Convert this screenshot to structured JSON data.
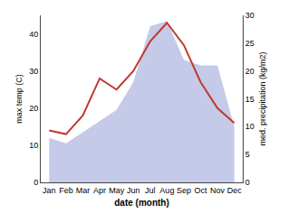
{
  "chart_data": {
    "type": "line",
    "categories": [
      "Jan",
      "Feb",
      "Mar",
      "Apr",
      "May",
      "Jun",
      "Jul",
      "Aug",
      "Sep",
      "Oct",
      "Nov",
      "Dec"
    ],
    "series": [
      {
        "type": "area",
        "color": "#c5cae9",
        "axis": "y2",
        "values": [
          8,
          7,
          9,
          11,
          13,
          18,
          28,
          29,
          22,
          21,
          21,
          10
        ]
      },
      {
        "type": "line",
        "color": "#c0392b",
        "values": [
          14,
          13,
          18,
          28,
          25,
          30,
          38,
          43,
          37,
          27,
          20,
          16
        ]
      }
    ],
    "xlabel": "date (month)",
    "ylabel": "max temp (C)",
    "y2label": "med. precipitation (kg/m2)",
    "ylim": [
      0,
      45
    ],
    "yticks": [
      0,
      10,
      20,
      30,
      40
    ],
    "y2lim": [
      0,
      30
    ],
    "y2ticks": [
      0,
      5,
      10,
      15,
      20,
      25,
      30
    ],
    "grid": false
  }
}
